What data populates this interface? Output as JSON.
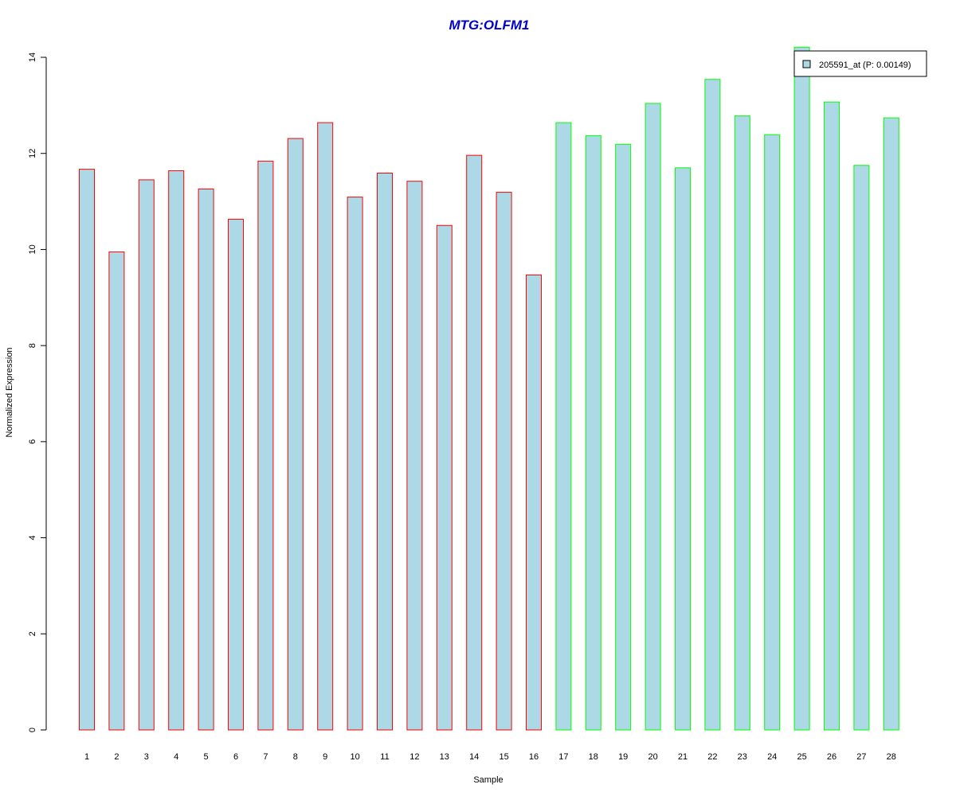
{
  "chart_data": {
    "type": "bar",
    "title": "MTG:OLFM1",
    "xlabel": "Sample",
    "ylabel": "Normalized Expression",
    "ylim": [
      0,
      14
    ],
    "yticks": [
      0,
      2,
      4,
      6,
      8,
      10,
      12,
      14
    ],
    "categories": [
      "1",
      "2",
      "3",
      "4",
      "5",
      "6",
      "7",
      "8",
      "9",
      "10",
      "11",
      "12",
      "13",
      "14",
      "15",
      "16",
      "17",
      "18",
      "19",
      "20",
      "21",
      "22",
      "23",
      "24",
      "25",
      "26",
      "27",
      "28"
    ],
    "values": [
      11.67,
      9.95,
      11.45,
      11.64,
      11.26,
      10.63,
      11.84,
      12.31,
      12.64,
      11.09,
      11.59,
      11.42,
      10.5,
      11.96,
      11.19,
      9.47,
      12.64,
      12.37,
      12.19,
      13.04,
      11.7,
      13.54,
      12.78,
      12.39,
      14.21,
      13.07,
      11.75,
      12.74
    ],
    "groups": [
      "red",
      "red",
      "red",
      "red",
      "red",
      "red",
      "red",
      "red",
      "red",
      "red",
      "red",
      "red",
      "red",
      "red",
      "red",
      "red",
      "green",
      "green",
      "green",
      "green",
      "green",
      "green",
      "green",
      "green",
      "green",
      "green",
      "green",
      "green"
    ],
    "grid": false,
    "legend": {
      "position": "top-right",
      "entries": [
        {
          "label": "205591_at (P: 0.00149)",
          "fill": "#add8e6"
        }
      ]
    },
    "colors": {
      "bar_fill": "#add8e6",
      "red_border": "#ff0000",
      "green_border": "#00ff00",
      "title": "#0000cd"
    }
  }
}
